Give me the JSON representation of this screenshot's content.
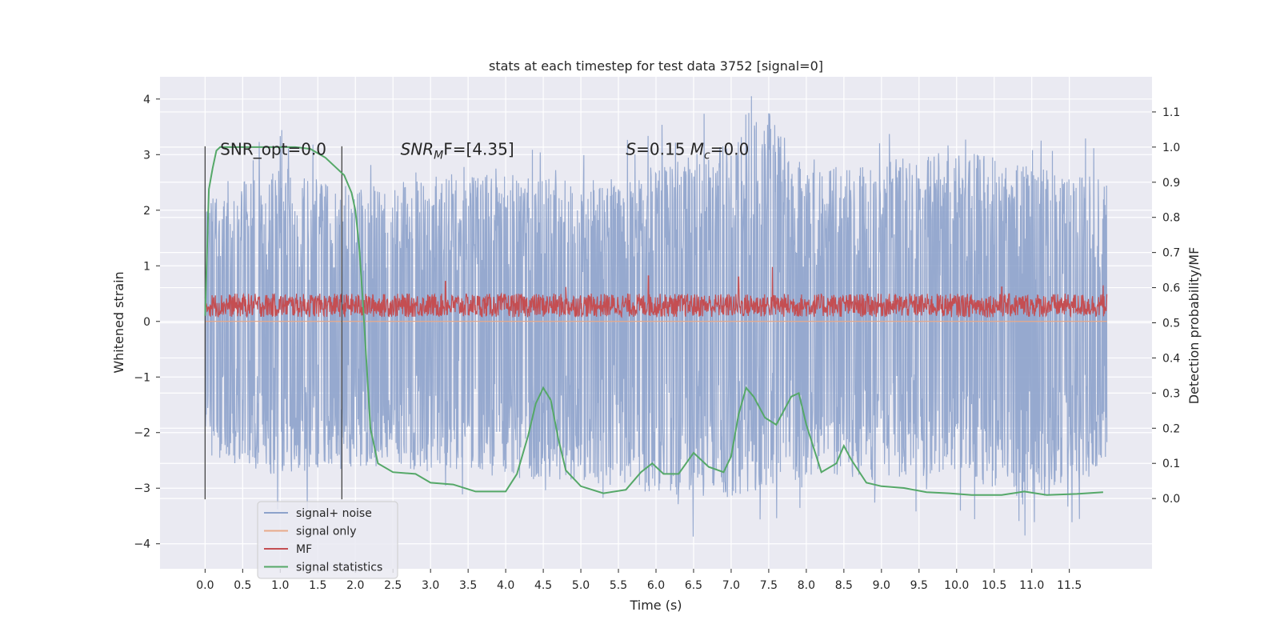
{
  "chart_data": {
    "type": "line",
    "title": "stats at each timestep for test data 3752 [signal=0]",
    "xlabel": "Time (s)",
    "ylabel": "Whitened strain",
    "ylabel_right": "Detection probability/MF",
    "xlim": [
      -0.6,
      12.6
    ],
    "ylim": [
      -4.45,
      4.4
    ],
    "ylim_right": [
      -0.2,
      1.2
    ],
    "x_ticks": [
      "0.0",
      "0.5",
      "1.0",
      "1.5",
      "2.0",
      "2.5",
      "3.0",
      "3.5",
      "4.0",
      "4.5",
      "5.0",
      "5.5",
      "6.0",
      "6.5",
      "7.0",
      "7.5",
      "8.0",
      "8.5",
      "9.0",
      "9.5",
      "10.0",
      "10.5",
      "11.0",
      "11.5"
    ],
    "y_ticks": [
      "4",
      "3",
      "2",
      "1",
      "0",
      "−1",
      "−2",
      "−3",
      "−4"
    ],
    "y_ticks_right": [
      "1.1",
      "1.0",
      "0.9",
      "0.8",
      "0.7",
      "0.6",
      "0.5",
      "0.4",
      "0.3",
      "0.2",
      "0.1",
      "0.0"
    ],
    "grid": true,
    "legend_position": "lower-left",
    "annotations": [
      {
        "text": "SNR_opt=0.0",
        "x": 0.2,
        "y": 3.1
      },
      {
        "text_parts": [
          "SNR",
          "M",
          "F=[4.35]"
        ],
        "x": 2.6,
        "y": 3.1
      },
      {
        "text_parts": [
          "S",
          "=0.15   ",
          "M",
          "c",
          "=0.0"
        ],
        "x": 5.6,
        "y": 3.1
      }
    ],
    "vertical_lines": [
      0.0,
      1.82
    ],
    "series": [
      {
        "name": "signal+ noise",
        "color": "#8da2cb",
        "axis": "left",
        "description_range": [
          -4.0,
          4.05
        ],
        "x_range": [
          0.0,
          12.0
        ],
        "envelope_pos": [
          [
            0.0,
            2.2
          ],
          [
            1.0,
            2.8
          ],
          [
            2.0,
            2.4
          ],
          [
            3.0,
            2.6
          ],
          [
            4.0,
            2.7
          ],
          [
            5.0,
            2.5
          ],
          [
            6.0,
            2.8
          ],
          [
            7.0,
            3.2
          ],
          [
            7.5,
            3.8
          ],
          [
            8.0,
            2.7
          ],
          [
            9.0,
            2.9
          ],
          [
            10.0,
            3.1
          ],
          [
            11.0,
            2.8
          ],
          [
            12.0,
            2.6
          ]
        ],
        "envelope_neg": [
          [
            0.0,
            -2.4
          ],
          [
            1.0,
            -2.8
          ],
          [
            2.0,
            -2.6
          ],
          [
            3.0,
            -2.7
          ],
          [
            4.0,
            -2.8
          ],
          [
            5.0,
            -2.9
          ],
          [
            6.0,
            -3.1
          ],
          [
            7.0,
            -3.2
          ],
          [
            8.0,
            -2.8
          ],
          [
            9.0,
            -2.9
          ],
          [
            10.0,
            -2.7
          ],
          [
            11.0,
            -3.4
          ],
          [
            12.0,
            -2.6
          ]
        ]
      },
      {
        "name": "signal only",
        "color": "#e8a98a",
        "axis": "left",
        "values_constant": 0.0
      },
      {
        "name": "MF",
        "color": "#c44e52",
        "axis": "left",
        "x_range": [
          0.0,
          12.0
        ],
        "band": [
          0.0,
          0.5
        ],
        "spikes": [
          [
            3.2,
            0.72
          ],
          [
            4.8,
            0.62
          ],
          [
            5.9,
            0.82
          ],
          [
            7.1,
            0.8
          ],
          [
            7.55,
            0.98
          ],
          [
            10.6,
            0.62
          ],
          [
            11.95,
            0.65
          ]
        ]
      },
      {
        "name": "signal statistics",
        "color": "#55a868",
        "axis": "right",
        "x": [
          0.0,
          0.05,
          0.1,
          0.15,
          0.2,
          0.3,
          0.5,
          0.8,
          1.0,
          1.2,
          1.4,
          1.6,
          1.75,
          1.85,
          1.95,
          2.0,
          2.05,
          2.1,
          2.15,
          2.2,
          2.3,
          2.5,
          2.8,
          3.0,
          3.3,
          3.6,
          4.0,
          4.15,
          4.3,
          4.4,
          4.5,
          4.6,
          4.7,
          4.8,
          5.0,
          5.3,
          5.6,
          5.8,
          5.95,
          6.1,
          6.3,
          6.5,
          6.7,
          6.9,
          7.0,
          7.1,
          7.2,
          7.3,
          7.45,
          7.6,
          7.8,
          7.9,
          8.0,
          8.2,
          8.4,
          8.5,
          8.6,
          8.8,
          9.0,
          9.3,
          9.6,
          9.9,
          10.2,
          10.6,
          10.9,
          11.2,
          11.6,
          11.95
        ],
        "y": [
          0.52,
          0.88,
          0.94,
          0.99,
          1.0,
          1.0,
          1.0,
          1.0,
          1.0,
          1.0,
          0.995,
          0.97,
          0.94,
          0.92,
          0.87,
          0.82,
          0.72,
          0.56,
          0.38,
          0.2,
          0.1,
          0.075,
          0.07,
          0.045,
          0.04,
          0.02,
          0.02,
          0.07,
          0.18,
          0.27,
          0.315,
          0.28,
          0.17,
          0.08,
          0.035,
          0.015,
          0.025,
          0.075,
          0.1,
          0.07,
          0.07,
          0.13,
          0.09,
          0.075,
          0.12,
          0.24,
          0.315,
          0.29,
          0.23,
          0.21,
          0.29,
          0.3,
          0.21,
          0.075,
          0.1,
          0.15,
          0.11,
          0.045,
          0.035,
          0.03,
          0.018,
          0.015,
          0.01,
          0.01,
          0.02,
          0.01,
          0.013,
          0.018
        ]
      }
    ]
  }
}
